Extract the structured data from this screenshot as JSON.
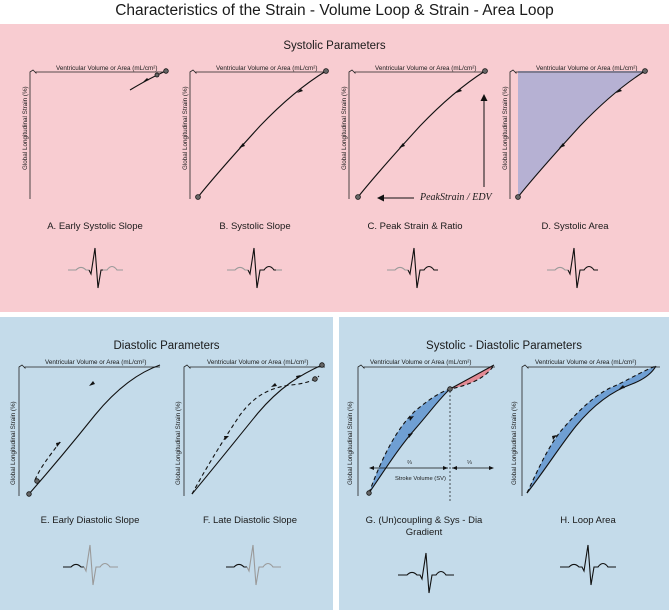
{
  "title": "Characteristics of the Strain - Volume Loop & Strain - Area Loop",
  "axis": {
    "x": "Ventricular Volume or Area (mL/cm²)",
    "y": "Global Longitudinal Strain (%)"
  },
  "colors": {
    "systolic_bg": "#f8ccd1",
    "diastolic_bg": "#c4dbea",
    "area_fill": "#b6b1d3",
    "coupling_blue": "#6f9fd3",
    "coupling_red": "#e38a94",
    "ecg_gray": "#9a9a9a",
    "ecg_black": "#111111"
  },
  "systolic": {
    "title": "Systolic Parameters",
    "labels": [
      "A. Early Systolic Slope",
      "B. Systolic Slope",
      "C. Peak Strain & Ratio",
      "D. Systolic Area"
    ],
    "peak_label": "PeakStrain / EDV"
  },
  "diastolic": {
    "title": "Diastolic Parameters",
    "labels": [
      "E. Early Diastolic Slope",
      "F. Late Diastolic Slope"
    ]
  },
  "sysdia": {
    "title": "Systolic - Diastolic Parameters",
    "labels": [
      "G. (Un)coupling & Sys - Dia Gradient",
      "H. Loop Area"
    ],
    "sv_label": "Stroke Volume (SV)",
    "fraction_left": "⅔",
    "fraction_right": "⅓"
  }
}
